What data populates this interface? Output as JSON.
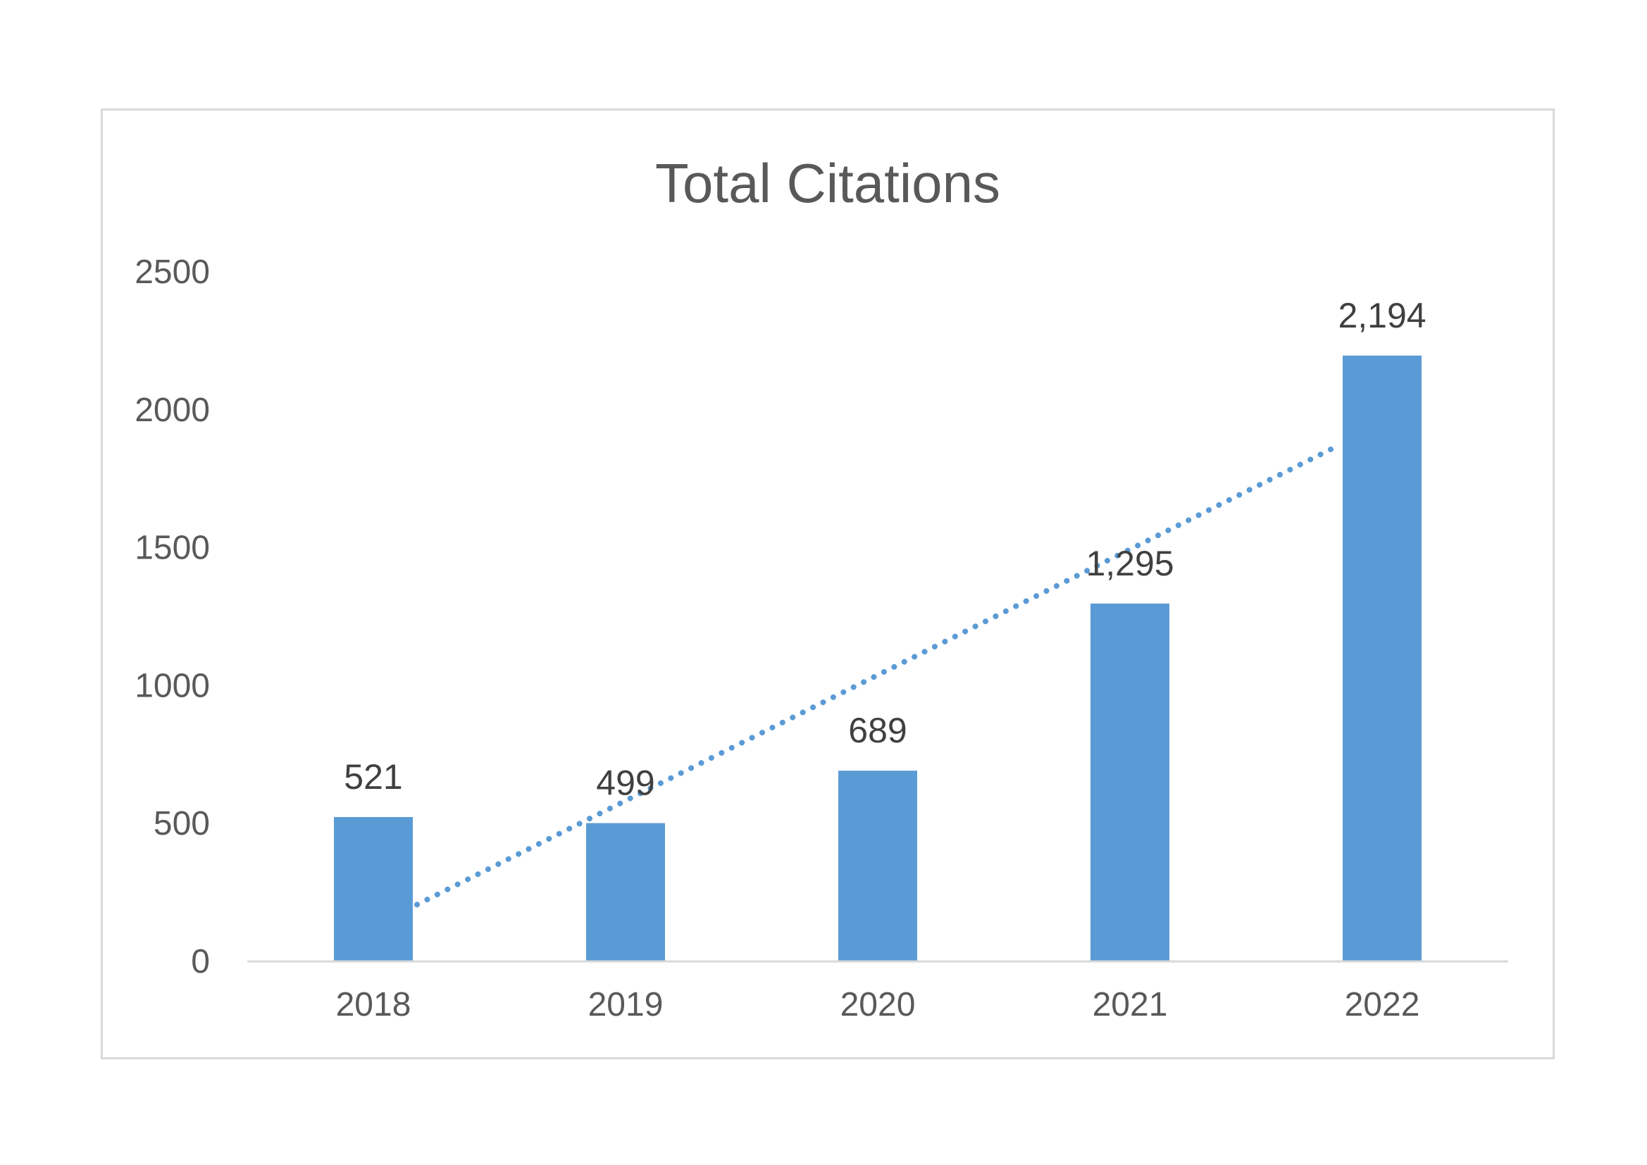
{
  "chart_data": {
    "type": "bar",
    "title": "Total Citations",
    "categories": [
      "2018",
      "2019",
      "2020",
      "2021",
      "2022"
    ],
    "values": [
      521,
      499,
      689,
      1295,
      2194
    ],
    "value_labels": [
      "521",
      "499",
      "689",
      "1,295",
      "2,194"
    ],
    "ylim": [
      0,
      2500
    ],
    "yticks": [
      0,
      500,
      1000,
      1500,
      2000,
      2500
    ],
    "grid": false,
    "trendline": {
      "type": "linear",
      "style": "dotted"
    },
    "colors": {
      "bar": "#5b9bd5",
      "trendline": "#5b9bd5",
      "axis": "#d9d9d9"
    }
  }
}
